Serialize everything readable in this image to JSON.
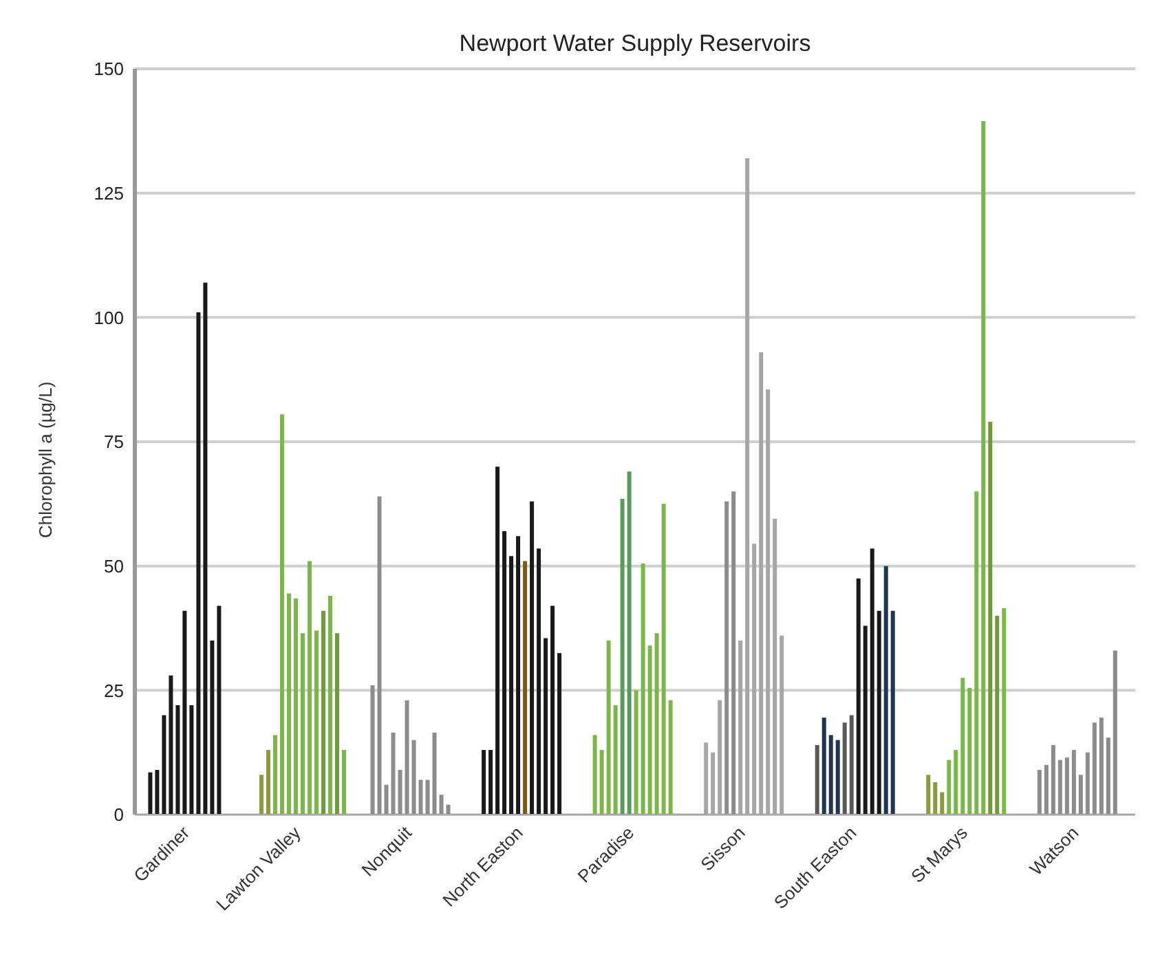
{
  "chart_data": {
    "type": "bar",
    "title": "Newport Water Supply Reservoirs",
    "ylabel": "Chlorophyll a (µg/L)",
    "categories": [
      "Gardiner",
      "Lawton Valley",
      "Nonquit",
      "North Easton",
      "Paradise",
      "Sisson",
      "South Easton",
      "St Marys",
      "Watson"
    ],
    "ylim": [
      0,
      150
    ],
    "yticks": [
      0,
      25,
      50,
      75,
      100,
      125,
      150
    ],
    "grid": "y",
    "legend": false,
    "series": [
      {
        "values": [
          8.5,
          8,
          26,
          13,
          16,
          14.5,
          14,
          8,
          9
        ],
        "colors": [
          "#1a1a1a",
          "#8c9a3c",
          "#8c8c8c",
          "#1a1a1a",
          "#7ab648",
          "#a6a6a6",
          "#595959",
          "#8c9a3c",
          "#8c8c8c"
        ]
      },
      {
        "values": [
          9,
          13,
          64,
          13,
          13,
          12.5,
          19.5,
          6.5,
          10
        ],
        "colors": [
          "#1a1a1a",
          "#8c9a3c",
          "#8c8c8c",
          "#1a1a1a",
          "#7ab648",
          "#a6a6a6",
          "#1f3550",
          "#8c9a3c",
          "#8c8c8c"
        ]
      },
      {
        "values": [
          20,
          16,
          6,
          70,
          35,
          23,
          16,
          4.5,
          14
        ],
        "colors": [
          "#1a1a1a",
          "#7ab648",
          "#8c8c8c",
          "#1a1a1a",
          "#7ab648",
          "#a6a6a6",
          "#1f3550",
          "#8c9a3c",
          "#8c8c8c"
        ]
      },
      {
        "values": [
          28,
          80.5,
          16.5,
          57,
          22,
          63,
          15,
          11,
          11
        ],
        "colors": [
          "#1a1a1a",
          "#7ab648",
          "#8c8c8c",
          "#1a1a1a",
          "#7ab648",
          "#8c8c8c",
          "#1f3550",
          "#7ab648",
          "#8c8c8c"
        ]
      },
      {
        "values": [
          22,
          44.5,
          9,
          52,
          63.5,
          65,
          18.5,
          13,
          11.5
        ],
        "colors": [
          "#1a1a1a",
          "#7ab648",
          "#8c8c8c",
          "#1a1a1a",
          "#5a9a5a",
          "#8c8c8c",
          "#595959",
          "#7ab648",
          "#8c8c8c"
        ]
      },
      {
        "values": [
          41,
          43.5,
          23,
          56,
          69,
          35,
          20,
          27.5,
          13
        ],
        "colors": [
          "#1a1a1a",
          "#7ab648",
          "#8c8c8c",
          "#1a1a1a",
          "#5a9a5a",
          "#a6a6a6",
          "#595959",
          "#7ab648",
          "#8c8c8c"
        ]
      },
      {
        "values": [
          22,
          36.5,
          15,
          51,
          25,
          132,
          47.5,
          25.5,
          8
        ],
        "colors": [
          "#1a1a1a",
          "#7ab648",
          "#8c8c8c",
          "#7a5c10",
          "#7ab648",
          "#a6a6a6",
          "#1a1a1a",
          "#7ab648",
          "#8c8c8c"
        ]
      },
      {
        "values": [
          101,
          51,
          7,
          63,
          50.5,
          54.5,
          38,
          65,
          12.5
        ],
        "colors": [
          "#1a1a1a",
          "#7ab648",
          "#8c8c8c",
          "#1a1a1a",
          "#7ab648",
          "#a6a6a6",
          "#1a1a1a",
          "#7ab648",
          "#8c8c8c"
        ]
      },
      {
        "values": [
          107,
          37,
          7,
          53.5,
          34,
          93,
          53.5,
          139.5,
          18.5
        ],
        "colors": [
          "#1a1a1a",
          "#7ab648",
          "#8c8c8c",
          "#1a1a1a",
          "#7ab648",
          "#a6a6a6",
          "#1a1a1a",
          "#7ab648",
          "#8c8c8c"
        ]
      },
      {
        "values": [
          35,
          41,
          16.5,
          35.5,
          36.5,
          85.5,
          41,
          79,
          19.5
        ],
        "colors": [
          "#1a1a1a",
          "#6f9a3a",
          "#8c8c8c",
          "#1a1a1a",
          "#7ab648",
          "#a6a6a6",
          "#1a1a1a",
          "#6f9a3a",
          "#8c8c8c"
        ]
      },
      {
        "values": [
          42,
          44,
          4,
          42,
          62.5,
          59.5,
          50,
          40,
          15.5
        ],
        "colors": [
          "#1a1a1a",
          "#7ab648",
          "#8c8c8c",
          "#1a1a1a",
          "#7ab648",
          "#a6a6a6",
          "#1f3550",
          "#6f9a3a",
          "#8c8c8c"
        ]
      },
      {
        "values": [
          null,
          36.5,
          2,
          32.5,
          23,
          36,
          41,
          41.5,
          33
        ],
        "colors": [
          null,
          "#6f9a3a",
          "#8c8c8c",
          "#1a1a1a",
          "#7ab648",
          "#a6a6a6",
          "#1f3550",
          "#7ab648",
          "#8c8c8c"
        ]
      },
      {
        "values": [
          null,
          13,
          null,
          null,
          null,
          null,
          null,
          null,
          null
        ],
        "colors": [
          null,
          "#7ab648",
          null,
          null,
          null,
          null,
          null,
          null,
          null
        ]
      }
    ]
  }
}
